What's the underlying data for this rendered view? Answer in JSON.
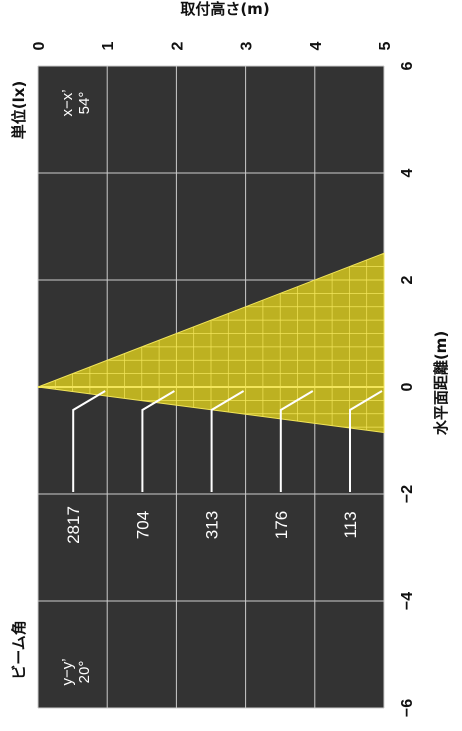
{
  "chart_data": {
    "type": "area",
    "xlabel": "水平面距離(m)",
    "ylabel": "取付高さ(m)",
    "xlim": [
      -6,
      6
    ],
    "ylim": [
      0,
      5
    ],
    "x_ticks": [
      "−6",
      "−4",
      "−2",
      "0",
      "2",
      "4",
      "6"
    ],
    "y_ticks": [
      "0",
      "1",
      "2",
      "3",
      "4",
      "5"
    ],
    "beam_apex": [
      0,
      0
    ],
    "beam_edge_left_at_max_height": -0.85,
    "beam_edge_right_at_max_height": 2.5,
    "illuminance": [
      {
        "height": 1,
        "value": "2817"
      },
      {
        "height": 2,
        "value": "704"
      },
      {
        "height": 3,
        "value": "313"
      },
      {
        "height": 4,
        "value": "176"
      },
      {
        "height": 5,
        "value": "113"
      }
    ],
    "unit_label": "単位(lx)",
    "beam_angle_label": "ビーム角",
    "beam_xx": {
      "axis": "x−x’",
      "angle": "54°"
    },
    "beam_yy": {
      "axis": "y−y’",
      "angle": "20°"
    }
  },
  "colors": {
    "background": "#333333",
    "grid": "#cccccc",
    "beam_fill": "#d6c81e",
    "beam_stroke": "#f2e55a",
    "leader": "#ffffff"
  }
}
